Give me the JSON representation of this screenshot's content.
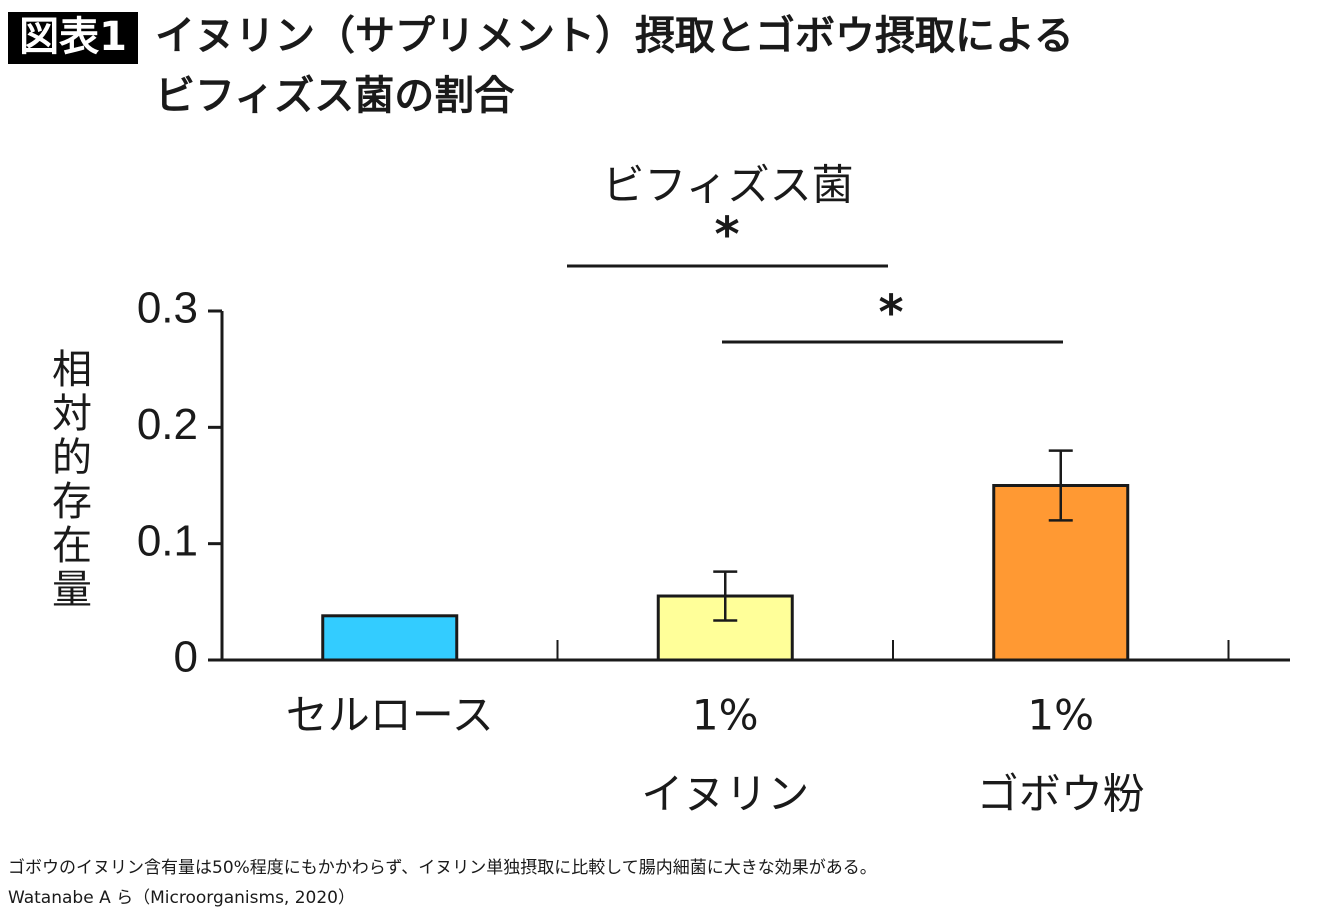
{
  "header": {
    "badge": "図表1",
    "title_lines": [
      "イヌリン（サプリメント）摂取とゴボウ摂取による",
      "ビフィズス菌の割合"
    ]
  },
  "chart_data": {
    "type": "bar",
    "title": "ビフィズス菌",
    "y_label": "相対的存在量",
    "categories": [
      [
        "セルロース"
      ],
      [
        "1%",
        "イヌリン"
      ],
      [
        "1%",
        "ゴボウ粉"
      ]
    ],
    "values": [
      0.038,
      0.055,
      0.15
    ],
    "errors": [
      null,
      0.021,
      0.03
    ],
    "colors": [
      "#33ccff",
      "#ffff99",
      "#ff9933"
    ],
    "ylim": [
      0,
      0.3
    ],
    "yticks": [
      0,
      0.1,
      0.2,
      0.3
    ],
    "annotations": [
      "*",
      "*"
    ]
  },
  "footnotes": [
    "ゴボウのイヌリン含有量は50%程度にもかかわらず、イヌリン単独摂取に比較して腸内細菌に大きな効果がある。",
    "Watanabe A ら（Microorganisms, 2020）"
  ]
}
